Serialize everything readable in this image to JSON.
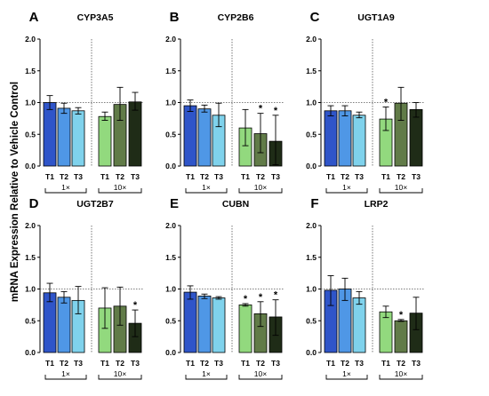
{
  "figure": {
    "ylabel": "mRNA Expression Relative to Vehicle Control"
  },
  "colors": {
    "T1_1x": "#2f55c9",
    "T2_1x": "#4f97e6",
    "T3_1x": "#7fd2ec",
    "T1_10x": "#92d97e",
    "T2_10x": "#617b48",
    "T3_10x": "#1f2c17",
    "bar_outline": "#000000",
    "reference_line": "#555555"
  },
  "chart_data": [
    {
      "type": "bar",
      "letter": "A",
      "title": "CYP3A5",
      "categories": [
        "T1",
        "T2",
        "T3",
        "T1",
        "T2",
        "T3"
      ],
      "groups": [
        "1×",
        "10×"
      ],
      "ylim": [
        0,
        2.0
      ],
      "yticks": [
        "0.0",
        "0.5",
        "1.0",
        "1.5",
        "2.0"
      ],
      "values": [
        1.0,
        0.91,
        0.87,
        0.78,
        0.97,
        1.01
      ],
      "error_low": [
        0.89,
        0.83,
        0.82,
        0.72,
        0.72,
        0.88
      ],
      "error_high": [
        1.11,
        0.99,
        0.92,
        0.85,
        1.24,
        1.16
      ],
      "significance": [
        "",
        "",
        "",
        "",
        "",
        ""
      ]
    },
    {
      "type": "bar",
      "letter": "B",
      "title": "CYP2B6",
      "categories": [
        "T1",
        "T2",
        "T3",
        "T1",
        "T2",
        "T3"
      ],
      "groups": [
        "1×",
        "10×"
      ],
      "ylim": [
        0,
        2.0
      ],
      "yticks": [
        "0.0",
        "0.5",
        "1.0",
        "1.5",
        "2.0"
      ],
      "values": [
        0.95,
        0.9,
        0.8,
        0.6,
        0.51,
        0.39
      ],
      "error_low": [
        0.86,
        0.85,
        0.62,
        0.32,
        0.21,
        0.02
      ],
      "error_high": [
        1.04,
        0.96,
        0.99,
        0.89,
        0.83,
        0.8
      ],
      "significance": [
        "",
        "",
        "",
        "",
        "*",
        "*"
      ]
    },
    {
      "type": "bar",
      "letter": "C",
      "title": "UGT1A9",
      "categories": [
        "T1",
        "T2",
        "T3",
        "T1",
        "T2",
        "T3"
      ],
      "groups": [
        "1×",
        "10×"
      ],
      "ylim": [
        0,
        2.0
      ],
      "yticks": [
        "0.0",
        "0.5",
        "1.0",
        "1.5",
        "2.0"
      ],
      "values": [
        0.87,
        0.87,
        0.8,
        0.74,
        0.99,
        0.89
      ],
      "error_low": [
        0.79,
        0.79,
        0.76,
        0.56,
        0.72,
        0.77
      ],
      "error_high": [
        0.95,
        0.95,
        0.85,
        0.93,
        1.24,
        1.0
      ],
      "significance": [
        "",
        "",
        "",
        "*",
        "",
        ""
      ]
    },
    {
      "type": "bar",
      "letter": "D",
      "title": "UGT2B7",
      "categories": [
        "T1",
        "T2",
        "T3",
        "T1",
        "T2",
        "T3"
      ],
      "groups": [
        "1×",
        "10×"
      ],
      "ylim": [
        0,
        2.0
      ],
      "yticks": [
        "0.0",
        "0.5",
        "1.0",
        "1.5",
        "2.0"
      ],
      "values": [
        0.94,
        0.87,
        0.82,
        0.7,
        0.73,
        0.46
      ],
      "error_low": [
        0.8,
        0.78,
        0.61,
        0.38,
        0.43,
        0.25
      ],
      "error_high": [
        1.09,
        0.96,
        1.04,
        1.02,
        1.03,
        0.67
      ],
      "significance": [
        "",
        "",
        "",
        "",
        "",
        "*"
      ]
    },
    {
      "type": "bar",
      "letter": "E",
      "title": "CUBN",
      "categories": [
        "T1",
        "T2",
        "T3",
        "T1",
        "T2",
        "T3"
      ],
      "groups": [
        "1×",
        "10×"
      ],
      "ylim": [
        0,
        2.0
      ],
      "yticks": [
        "0.0",
        "0.5",
        "1.0",
        "1.5",
        "2.0"
      ],
      "values": [
        0.95,
        0.89,
        0.86,
        0.75,
        0.61,
        0.56
      ],
      "error_low": [
        0.84,
        0.85,
        0.84,
        0.73,
        0.41,
        0.27
      ],
      "error_high": [
        1.05,
        0.92,
        0.88,
        0.77,
        0.8,
        0.83
      ],
      "significance": [
        "",
        "",
        "",
        "*",
        "*",
        "*"
      ]
    },
    {
      "type": "bar",
      "letter": "F",
      "title": "LRP2",
      "categories": [
        "T1",
        "T2",
        "T3",
        "T1",
        "T2",
        "T3"
      ],
      "groups": [
        "1×",
        "10×"
      ],
      "ylim": [
        0,
        2.0
      ],
      "yticks": [
        "0.0",
        "0.5",
        "1.0",
        "1.5",
        "2.0"
      ],
      "values": [
        0.98,
        1.0,
        0.86,
        0.64,
        0.5,
        0.62
      ],
      "error_low": [
        0.74,
        0.82,
        0.76,
        0.55,
        0.49,
        0.36
      ],
      "error_high": [
        1.21,
        1.17,
        0.96,
        0.73,
        0.52,
        0.87
      ],
      "significance": [
        "",
        "",
        "",
        "",
        "*",
        ""
      ]
    }
  ]
}
